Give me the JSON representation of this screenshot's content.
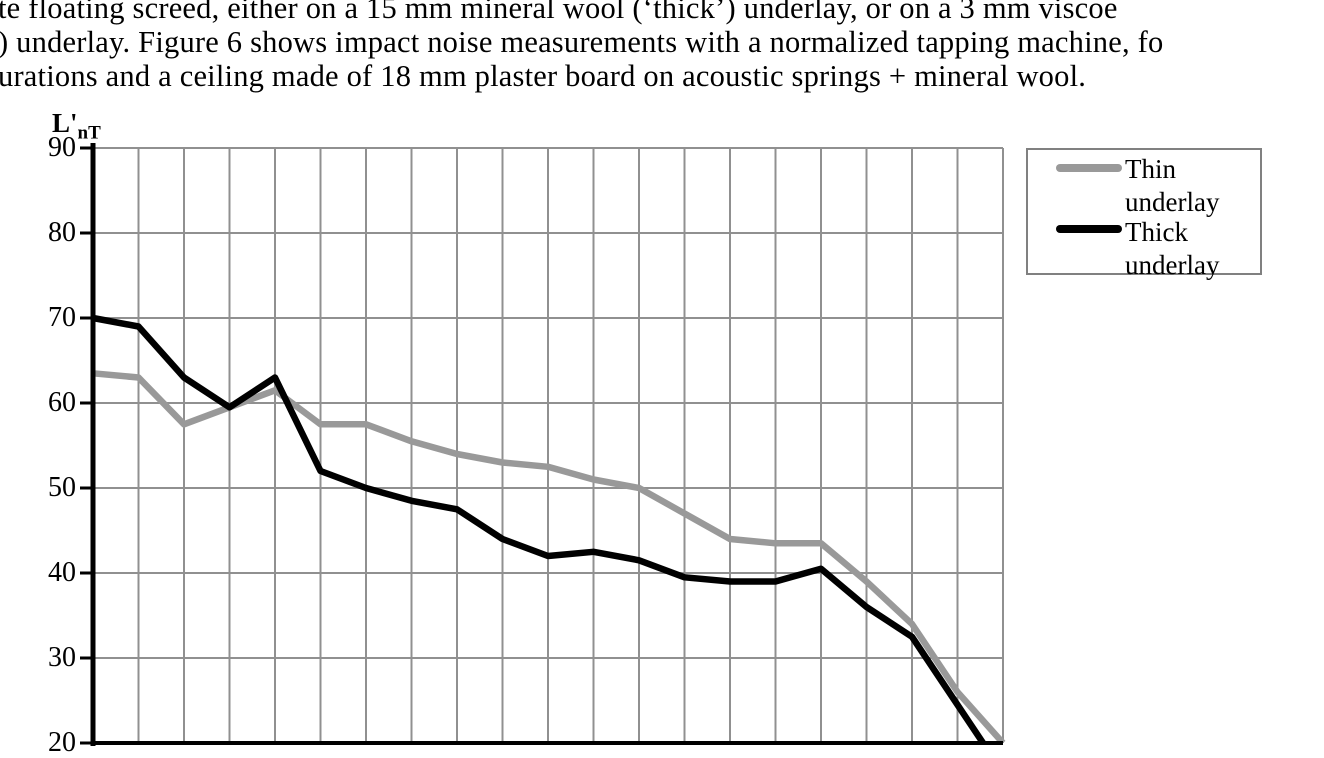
{
  "document": {
    "lines": [
      "te floating screed, either on a 15 mm mineral wool (‘thick’) underlay, or on a 3 mm viscoe",
      ") underlay. Figure 6 shows impact noise measurements with a normalized tapping machine, fo",
      "urations and a ceiling made of 18 mm plaster board on acoustic springs + mineral wool."
    ]
  },
  "chart_data": {
    "type": "line",
    "title": "",
    "y_axis_label": {
      "main": "L'",
      "sub": "nT"
    },
    "ylim": [
      20,
      90
    ],
    "y_ticks": [
      90,
      80,
      70,
      60,
      50,
      40,
      30,
      20
    ],
    "x_tick_labels_visible": false,
    "x": [
      1,
      2,
      3,
      4,
      5,
      6,
      7,
      8,
      9,
      10,
      11,
      12,
      13,
      14,
      15,
      16,
      17,
      18,
      19,
      20,
      21
    ],
    "grid": true,
    "legend_position": "top-right",
    "series": [
      {
        "name": "Thin underlay",
        "label_lines": [
          "Thin",
          "underlay"
        ],
        "color": "#999999",
        "values": [
          63.5,
          63,
          57.5,
          59.5,
          61.5,
          57.5,
          57.5,
          55.5,
          54,
          53,
          52.5,
          51,
          50,
          47,
          44,
          43.5,
          43.5,
          39,
          34,
          26,
          20
        ]
      },
      {
        "name": "Thick underlay",
        "label_lines": [
          "Thick",
          "underlay"
        ],
        "color": "#000000",
        "values": [
          70,
          69,
          63,
          59.5,
          63,
          52,
          50,
          48.5,
          47.5,
          44,
          42,
          42.5,
          41.5,
          39.5,
          39,
          39,
          40.5,
          36,
          32.5,
          24.5,
          16.5
        ]
      }
    ],
    "note": "Last Thick-underlay point falls below the 20 dB axis minimum and is clipped at the plot edge",
    "colors": {
      "gridline": "#909090",
      "axis": "#000000",
      "legend_border": "#808080"
    }
  }
}
